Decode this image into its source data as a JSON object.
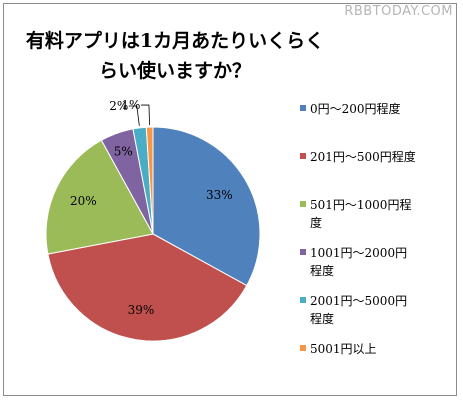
{
  "watermark": "RBBTODAY.COM",
  "chart_data": {
    "type": "pie",
    "title": "有料アプリは1カ月あたりいくらくらい使いますか？",
    "title_lines": [
      "有料アプリは1カ月あたりいくらく",
      "らい使いますか？"
    ],
    "legend_position": "right",
    "slices": [
      {
        "label": "0円～200円程度",
        "value": 33,
        "display": "33%",
        "color": "#4f81bd",
        "legend_lines": [
          "0円～200円程度"
        ]
      },
      {
        "label": "201円～500円程度",
        "value": 39,
        "display": "39%",
        "color": "#c0504d",
        "legend_lines": [
          "201円～500円程度"
        ]
      },
      {
        "label": "501円～1000円程度",
        "value": 20,
        "display": "20%",
        "color": "#9bbb59",
        "legend_lines": [
          "501円～1000円程",
          "度"
        ]
      },
      {
        "label": "1001円～2000円程度",
        "value": 5,
        "display": "5%",
        "color": "#8064a2",
        "legend_lines": [
          "1001円～2000円",
          "程度"
        ]
      },
      {
        "label": "2001円～5000円程度",
        "value": 2,
        "display": "2%",
        "color": "#4bacc6",
        "legend_lines": [
          "2001円～5000円",
          "程度"
        ]
      },
      {
        "label": "5001円以上",
        "value": 1,
        "display": "1%",
        "color": "#f79646",
        "legend_lines": [
          "5001円以上"
        ]
      }
    ]
  }
}
